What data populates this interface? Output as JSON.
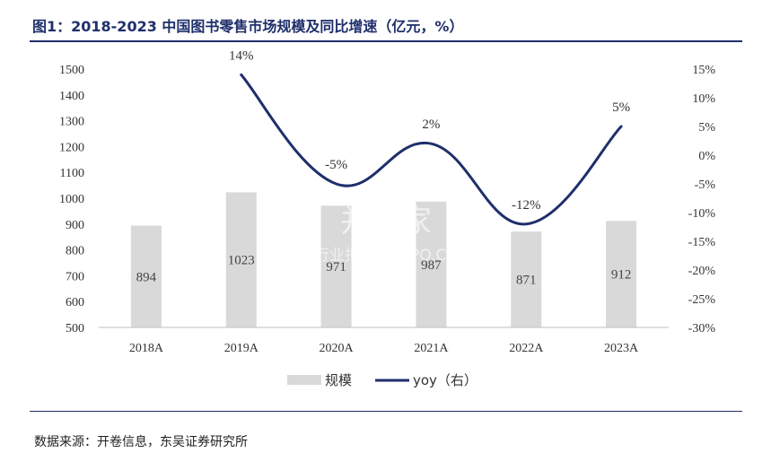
{
  "title": "图1：2018-2023 中国图书零售市场规模及同比增速（亿元，%）",
  "source": "数据来源：开卷信息，东吴证券研究所",
  "watermark": {
    "brand": "并购家",
    "sub": "行业报告 IPOIPO.CN"
  },
  "colors": {
    "bar": "#d9d9d9",
    "line": "#1f2f6b",
    "title": "#1f2f6b"
  },
  "chart_data": {
    "type": "bar+line",
    "categories": [
      "2018A",
      "2019A",
      "2020A",
      "2021A",
      "2022A",
      "2023A"
    ],
    "series": [
      {
        "name": "规模",
        "type": "bar",
        "axis": "left",
        "values": [
          894,
          1023,
          971,
          987,
          871,
          912
        ],
        "labels": [
          "894",
          "1023",
          "971",
          "987",
          "871",
          "912"
        ]
      },
      {
        "name": "yoy（右）",
        "type": "line",
        "axis": "right",
        "values": [
          14,
          -5,
          2,
          -12,
          5
        ],
        "x": [
          "2019A",
          "2020A",
          "2021A",
          "2022A",
          "2023A"
        ],
        "labels": [
          "14%",
          "-5%",
          "2%",
          "-12%",
          "5%"
        ]
      }
    ],
    "left_axis": {
      "ylim": [
        500,
        1500
      ],
      "ticks": [
        "500",
        "600",
        "700",
        "800",
        "900",
        "1000",
        "1100",
        "1200",
        "1300",
        "1400",
        "1500"
      ]
    },
    "right_axis": {
      "ylim": [
        -30,
        15
      ],
      "ticks": [
        "-30%",
        "-25%",
        "-20%",
        "-15%",
        "-10%",
        "-5%",
        "0%",
        "5%",
        "10%",
        "15%"
      ]
    },
    "grid": false,
    "legend": "bottom-center"
  }
}
